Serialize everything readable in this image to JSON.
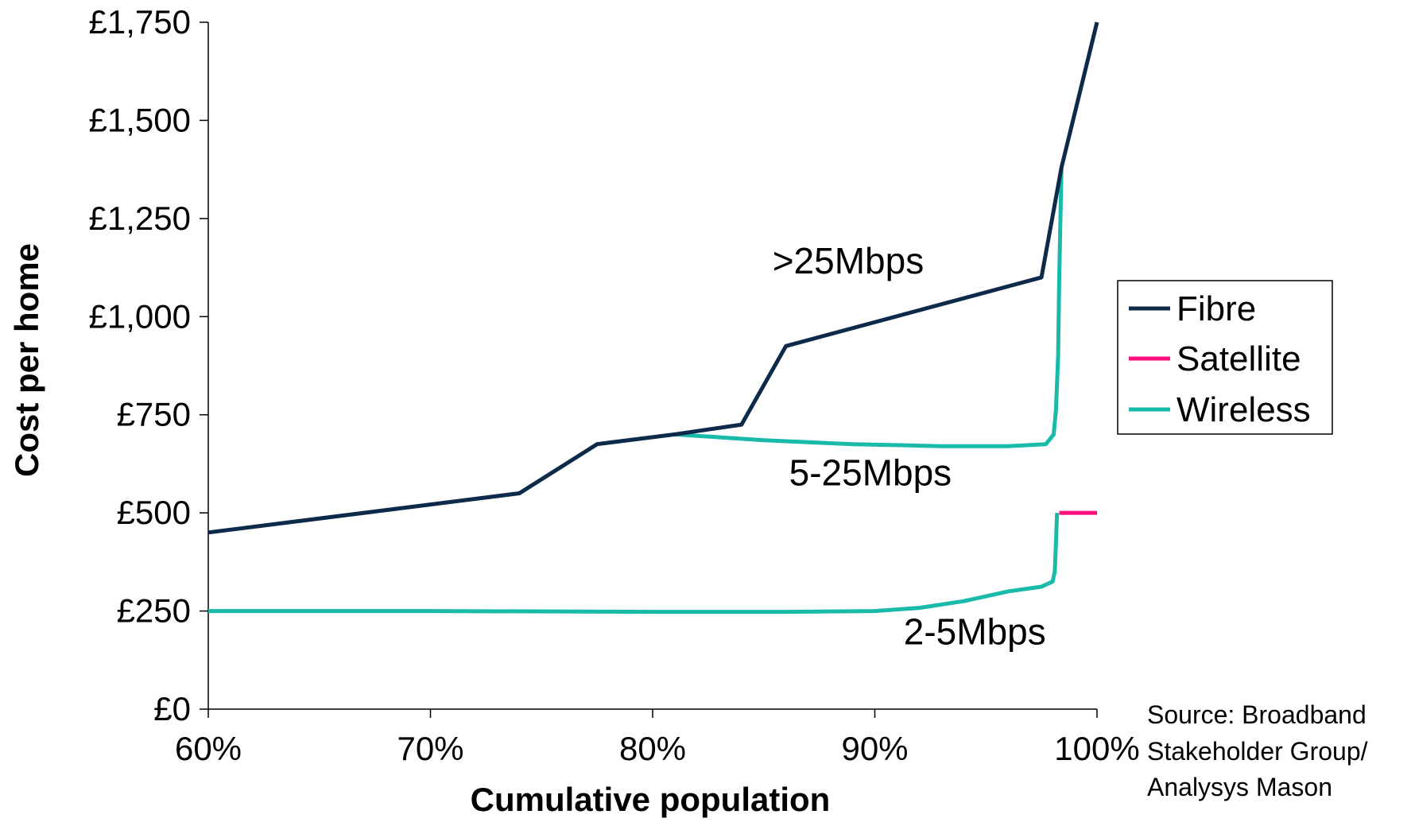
{
  "chart_data": {
    "type": "line",
    "xlabel": "Cumulative population",
    "ylabel": "Cost per home",
    "xlim": [
      60,
      100
    ],
    "ylim": [
      0,
      1750
    ],
    "x_ticks": [
      "60%",
      "70%",
      "80%",
      "90%",
      "100%"
    ],
    "y_ticks": [
      "£0",
      "£250",
      "£500",
      "£750",
      "£1,000",
      "£1,250",
      "£1,500",
      "£1,750"
    ],
    "grid": false,
    "legend_position": "right",
    "series": [
      {
        "name": "Fibre",
        "color": "#0d2a4a",
        "segments": [
          [
            [
              60,
              450
            ],
            [
              74,
              550
            ],
            [
              77.5,
              675
            ],
            [
              81,
              700
            ],
            [
              84,
              725
            ],
            [
              86,
              925
            ],
            [
              97.5,
              1100
            ],
            [
              98.4,
              1380
            ],
            [
              100,
              1750
            ]
          ]
        ]
      },
      {
        "name": "Satellite",
        "color": "#ff0f7b",
        "segments": [
          [
            [
              98.3,
              500
            ],
            [
              100,
              500
            ]
          ]
        ]
      },
      {
        "name": "Wireless",
        "color": "#1abaaa",
        "segments": [
          [
            [
              81,
              700
            ],
            [
              85,
              685
            ],
            [
              89,
              675
            ],
            [
              93,
              670
            ],
            [
              96,
              670
            ],
            [
              97.7,
              675
            ],
            [
              98.05,
              700
            ],
            [
              98.15,
              760
            ],
            [
              98.25,
              900
            ],
            [
              98.3,
              1100
            ],
            [
              98.4,
              1380
            ]
          ],
          [
            [
              60,
              250
            ],
            [
              70,
              250
            ],
            [
              80,
              248
            ],
            [
              86,
              248
            ],
            [
              90,
              250
            ],
            [
              92,
              258
            ],
            [
              94,
              275
            ],
            [
              96,
              300
            ],
            [
              97.5,
              312
            ],
            [
              98,
              325
            ],
            [
              98.1,
              350
            ],
            [
              98.15,
              420
            ],
            [
              98.2,
              500
            ]
          ]
        ]
      }
    ],
    "annotations": [
      {
        "text": ">25Mbps",
        "x": 88.8,
        "y": 1110
      },
      {
        "text": "5-25Mbps",
        "x": 89.8,
        "y": 570
      },
      {
        "text": "2-5Mbps",
        "x": 94.5,
        "y": 165
      }
    ]
  },
  "source_lines": [
    "Source: Broadband",
    "Stakeholder Group/",
    "Analysys Mason"
  ]
}
